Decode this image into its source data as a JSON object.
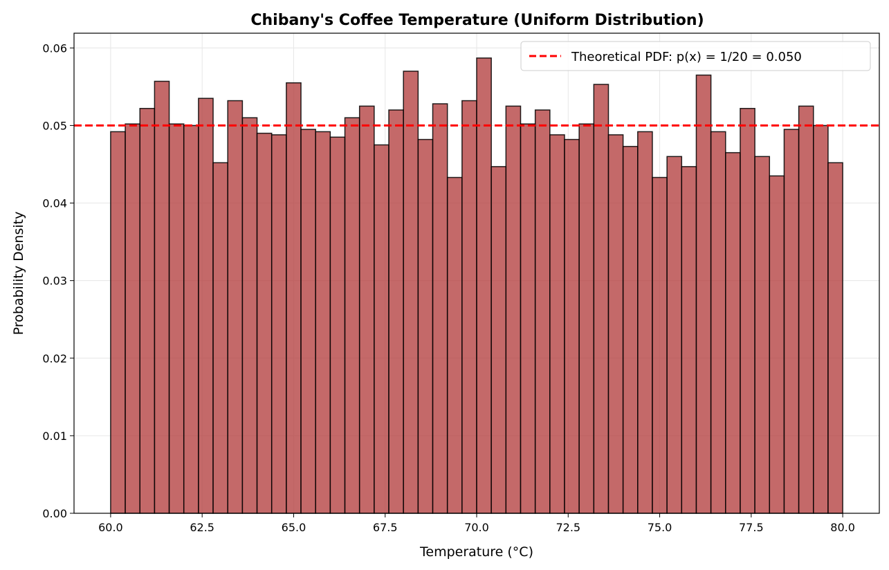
{
  "chart_data": {
    "type": "bar",
    "title": "Chibany's Coffee Temperature (Uniform Distribution)",
    "xlabel": "Temperature (°C)",
    "ylabel": "Probability Density",
    "xlim": [
      59.0,
      81.0
    ],
    "ylim": [
      0,
      0.0619
    ],
    "grid": true,
    "bin_start": 60.0,
    "bin_width": 0.4,
    "values": [
      0.0492,
      0.0502,
      0.0522,
      0.0557,
      0.0502,
      0.05,
      0.0535,
      0.0452,
      0.0532,
      0.051,
      0.049,
      0.0488,
      0.0555,
      0.0495,
      0.0492,
      0.0485,
      0.051,
      0.0525,
      0.0475,
      0.052,
      0.057,
      0.0482,
      0.0528,
      0.0433,
      0.0532,
      0.0587,
      0.0447,
      0.0525,
      0.0502,
      0.052,
      0.0488,
      0.0482,
      0.0502,
      0.0553,
      0.0488,
      0.0473,
      0.0492,
      0.0433,
      0.046,
      0.0447,
      0.0565,
      0.0492,
      0.0465,
      0.0522,
      0.046,
      0.0435,
      0.0495,
      0.0525,
      0.05,
      0.0452
    ],
    "bar_color": "#b33f3f",
    "edge_color": "#000000",
    "xticks": [
      "60.0",
      "62.5",
      "65.0",
      "67.5",
      "70.0",
      "72.5",
      "75.0",
      "77.5",
      "80.0"
    ],
    "yticks": [
      "0.00",
      "0.01",
      "0.02",
      "0.03",
      "0.04",
      "0.05",
      "0.06"
    ],
    "reference_line": {
      "y": 0.05,
      "color": "#ff0000",
      "style": "dashed",
      "label": "Theoretical PDF: p(x) = 1/20 = 0.050"
    },
    "legend_position": "top-right"
  }
}
